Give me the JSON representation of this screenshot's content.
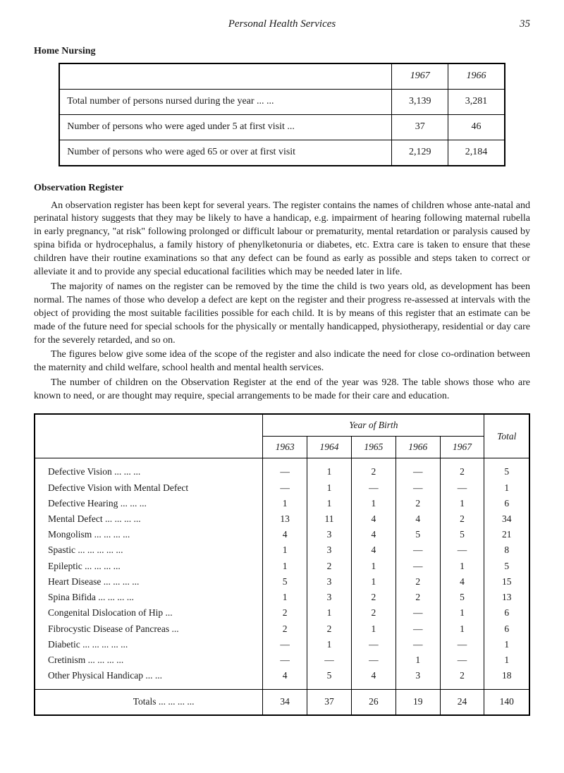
{
  "header": {
    "running_head": "Personal Health Services",
    "page_number": "35"
  },
  "section1": {
    "heading": "Home Nursing",
    "table": {
      "col_headers": [
        "1967",
        "1966"
      ],
      "rows": [
        {
          "label": "Total number of persons nursed during the year ...      ...",
          "c1": "3,139",
          "c2": "3,281"
        },
        {
          "label": "Number of persons who were aged under 5 at first visit ...",
          "c1": "37",
          "c2": "46"
        },
        {
          "label": "Number of persons who were aged 65 or over at first visit",
          "c1": "2,129",
          "c2": "2,184"
        }
      ]
    }
  },
  "section2": {
    "heading": "Observation Register",
    "paragraphs": [
      "An observation register has been kept for several years. The register contains the names of children whose ante-natal and perinatal history suggests that they may be likely to have a handicap, e.g. impairment of hearing following maternal rubella in early pregnancy, \"at risk\" following prolonged or difficult labour or prematurity, mental retardation or paralysis caused by spina bifida or hydrocephalus, a family history of phenylketonuria or diabetes, etc. Extra care is taken to ensure that these children have their routine examinations so that any defect can be found as early as possible and steps taken to correct or alleviate it and to provide any special educational facilities which may be needed later in life.",
      "The majority of names on the register can be removed by the time the child is two years old, as development has been normal. The names of those who develop a defect are kept on the register and their progress re-assessed at intervals with the object of providing the most suitable facilities possible for each child. It is by means of this register that an estimate can be made of the future need for special schools for the physically or mentally handicapped, physiotherapy, residential or day care for the severely retarded, and so on.",
      "The figures below give some idea of the scope of the register and also indicate the need for close co-ordination between the maternity and child welfare, school health and mental health services.",
      "The number of children on the Observation Register at the end of the year was 928. The table shows those who are known to need, or are thought may require, special arrangements to be made for their care and education."
    ]
  },
  "table2": {
    "group_header": "Year of Birth",
    "years": [
      "1963",
      "1964",
      "1965",
      "1966",
      "1967"
    ],
    "total_label": "Total",
    "rows": [
      {
        "label": "Defective Vision        ...    ...    ...",
        "v": [
          "—",
          "1",
          "2",
          "—",
          "2",
          "5"
        ]
      },
      {
        "label": "Defective Vision with Mental Defect",
        "v": [
          "—",
          "1",
          "—",
          "—",
          "—",
          "1"
        ]
      },
      {
        "label": "Defective Hearing      ...    ...    ...",
        "v": [
          "1",
          "1",
          "1",
          "2",
          "1",
          "6"
        ]
      },
      {
        "label": "Mental Defect  ...      ...    ...    ...",
        "v": [
          "13",
          "11",
          "4",
          "4",
          "2",
          "34"
        ]
      },
      {
        "label": "Mongolism     ...      ...    ...    ...",
        "v": [
          "4",
          "3",
          "4",
          "5",
          "5",
          "21"
        ]
      },
      {
        "label": "Spastic  ...      ...      ...    ...    ...",
        "v": [
          "1",
          "3",
          "4",
          "—",
          "—",
          "8"
        ]
      },
      {
        "label": "Epileptic        ...      ...    ...    ...",
        "v": [
          "1",
          "2",
          "1",
          "—",
          "1",
          "5"
        ]
      },
      {
        "label": "Heart Disease  ...      ...    ...    ...",
        "v": [
          "5",
          "3",
          "1",
          "2",
          "4",
          "15"
        ]
      },
      {
        "label": "Spina Bifida    ...      ...    ...    ...",
        "v": [
          "1",
          "3",
          "2",
          "2",
          "5",
          "13"
        ]
      },
      {
        "label": "Congenital Dislocation of Hip      ...",
        "v": [
          "2",
          "1",
          "2",
          "—",
          "1",
          "6"
        ]
      },
      {
        "label": "Fibrocystic Disease of Pancreas    ...",
        "v": [
          "2",
          "2",
          "1",
          "—",
          "1",
          "6"
        ]
      },
      {
        "label": "Diabetic ...      ...      ...    ...    ...",
        "v": [
          "—",
          "1",
          "—",
          "—",
          "—",
          "1"
        ]
      },
      {
        "label": "Cretinism        ...      ...    ...    ...",
        "v": [
          "—",
          "—",
          "—",
          "1",
          "—",
          "1"
        ]
      },
      {
        "label": "Other Physical Handicap      ...    ...",
        "v": [
          "4",
          "5",
          "4",
          "3",
          "2",
          "18"
        ]
      }
    ],
    "totals": {
      "label": "Totals        ...      ...    ...    ...",
      "v": [
        "34",
        "37",
        "26",
        "19",
        "24",
        "140"
      ]
    }
  }
}
